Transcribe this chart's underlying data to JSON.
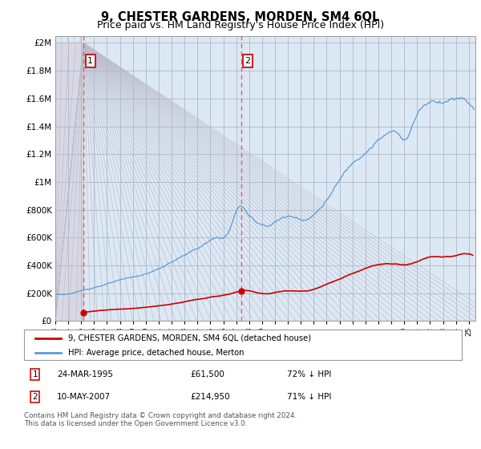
{
  "title": "9, CHESTER GARDENS, MORDEN, SM4 6QL",
  "subtitle": "Price paid vs. HM Land Registry's House Price Index (HPI)",
  "title_fontsize": 10.5,
  "subtitle_fontsize": 9,
  "ylim": [
    0,
    2000000
  ],
  "yticks": [
    0,
    200000,
    400000,
    600000,
    800000,
    1000000,
    1200000,
    1400000,
    1600000,
    1800000,
    2000000
  ],
  "ytick_labels": [
    "£0",
    "£200K",
    "£400K",
    "£600K",
    "£800K",
    "£1M",
    "£1.2M",
    "£1.4M",
    "£1.6M",
    "£1.8M",
    "£2M"
  ],
  "hpi_color": "#5b9bd5",
  "price_color": "#cc0000",
  "dot_color": "#cc0000",
  "vline_color": "#e07070",
  "bg_hatch_color": "#dcdce8",
  "bg_plain_color": "#dce8f0",
  "grid_color": "#b0b8c8",
  "legend_label_price": "9, CHESTER GARDENS, MORDEN, SM4 6QL (detached house)",
  "legend_label_hpi": "HPI: Average price, detached house, Merton",
  "sale1_date": "24-MAR-1995",
  "sale1_price": "£61,500",
  "sale1_hpi": "72% ↓ HPI",
  "sale2_date": "10-MAY-2007",
  "sale2_price": "£214,950",
  "sale2_hpi": "71% ↓ HPI",
  "footer": "Contains HM Land Registry data © Crown copyright and database right 2024.\nThis data is licensed under the Open Government Licence v3.0.",
  "sale1_year": 1995.2,
  "sale1_value": 61500,
  "sale2_year": 2007.37,
  "sale2_value": 214950,
  "xmin": 1993.0,
  "xmax": 2025.5
}
